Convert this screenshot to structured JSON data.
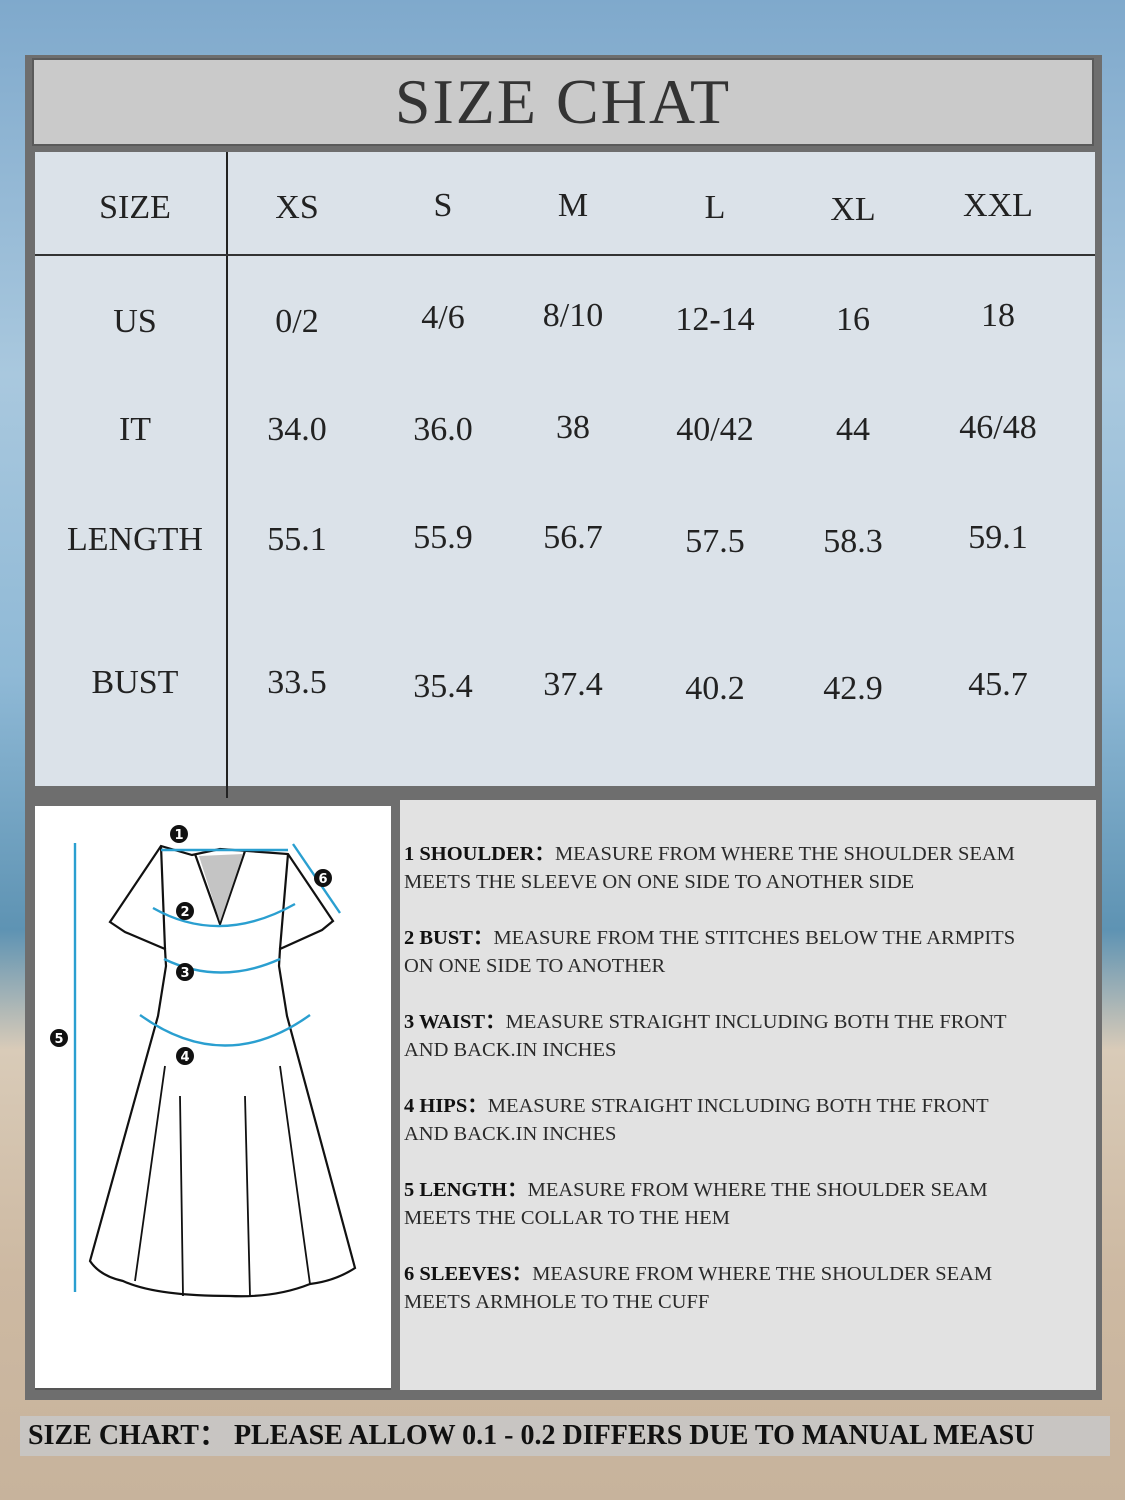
{
  "title": "SIZE CHAT",
  "table": {
    "header": [
      "SIZE",
      "XS",
      "S",
      "M",
      "L",
      "XL",
      "XXL"
    ],
    "rows": [
      {
        "label": "US",
        "values": [
          "0/2",
          "4/6",
          "8/10",
          "12-14",
          "16",
          "18"
        ]
      },
      {
        "label": "IT",
        "values": [
          "34.0",
          "36.0",
          "38",
          "40/42",
          "44",
          "46/48"
        ]
      },
      {
        "label": "LENGTH",
        "values": [
          "55.1",
          "55.9",
          "56.7",
          "57.5",
          "58.3",
          "59.1"
        ]
      },
      {
        "label": "BUST",
        "values": [
          "33.5",
          "35.4",
          "37.4",
          "40.2",
          "42.9",
          "45.7"
        ]
      }
    ]
  },
  "diagram": {
    "markers": [
      "1",
      "2",
      "3",
      "4",
      "5",
      "6"
    ],
    "accent": "#2a9fd0"
  },
  "instructions": [
    {
      "label": "1 SHOULDER：",
      "line1": "MEASURE FROM WHERE THE SHOULDER SEAM",
      "line2": "MEETS THE SLEEVE ON ONE SIDE TO ANOTHER SIDE"
    },
    {
      "label": "2 BUST：",
      "line1": "MEASURE FROM THE STITCHES BELOW THE ARMPITS",
      "line2": "ON ONE SIDE TO ANOTHER"
    },
    {
      "label": "3 WAIST：",
      "line1": "MEASURE STRAIGHT INCLUDING BOTH THE FRONT",
      "line2": "AND BACK.IN INCHES"
    },
    {
      "label": "4 HIPS：",
      "line1": "MEASURE STRAIGHT INCLUDING BOTH THE FRONT",
      "line2": "AND BACK.IN INCHES"
    },
    {
      "label": "5 LENGTH：",
      "line1": "MEASURE FROM WHERE THE SHOULDER SEAM",
      "line2": "MEETS THE COLLAR TO THE HEM"
    },
    {
      "label": "6 SLEEVES：",
      "line1": "MEASURE FROM WHERE THE SHOULDER SEAM",
      "line2": "MEETS ARMHOLE TO THE CUFF"
    }
  ],
  "footer": "SIZE CHART：  PLEASE ALLOW 0.1  - 0.2  DIFFERS DUE TO MANUAL MEASU"
}
